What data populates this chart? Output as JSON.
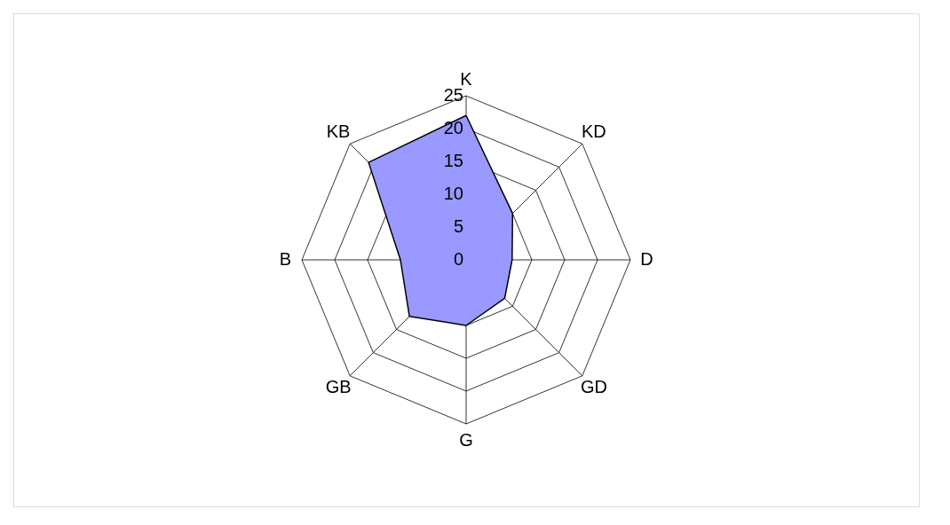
{
  "chart_data": {
    "type": "radar",
    "categories": [
      "K",
      "KD",
      "D",
      "GD",
      "G",
      "GB",
      "B",
      "KB"
    ],
    "series": [
      {
        "color": "#9999ff",
        "values": [
          22,
          10,
          7,
          8.3,
          10,
          12.2,
          10,
          21
        ]
      }
    ],
    "ylim": [
      0,
      25
    ],
    "yticks": [
      0,
      5,
      10,
      15,
      20,
      25
    ],
    "grid": true
  }
}
